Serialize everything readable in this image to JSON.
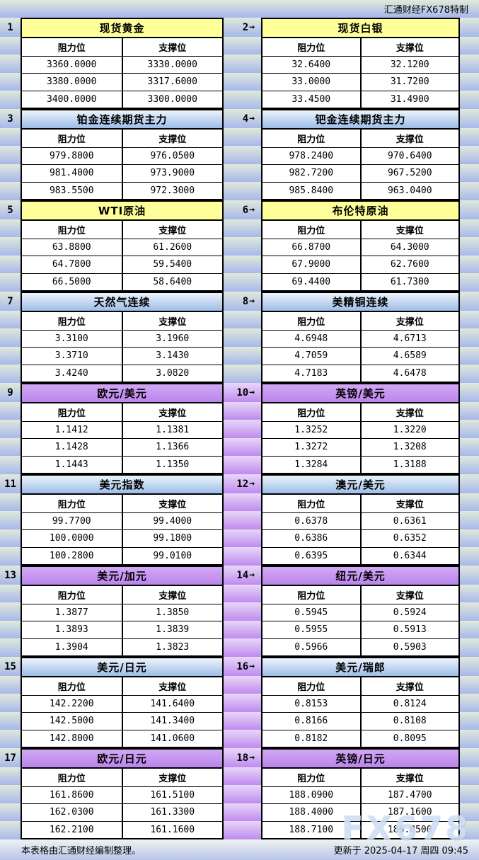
{
  "header": {
    "note": "汇通财经FX678特制"
  },
  "labels": {
    "resistance": "阻力位",
    "support": "支撑位"
  },
  "icons": {
    "right_arrow": "→"
  },
  "colors": {
    "yellow_header": "#ffff99",
    "blue_header_top": "#ecf4fc",
    "blue_header_bottom": "#9dbde7",
    "purple_header_top": "#d2a8f4",
    "purple_header_bottom": "#bb85ec",
    "margin_gradient_top": "#dfead9",
    "margin_gradient_bottom": "#a8b7ec",
    "purple_gutter_top": "#e8d7f8",
    "purple_gutter_bottom": "#bf8bef",
    "border": "#000000"
  },
  "groups": [
    {
      "left_no": "1",
      "right_no": "2",
      "theme": "yellow",
      "gutter": "green",
      "left": {
        "title": "现货黄金",
        "rows": [
          [
            "3360.0000",
            "3330.0000"
          ],
          [
            "3380.0000",
            "3317.6000"
          ],
          [
            "3400.0000",
            "3300.0000"
          ]
        ]
      },
      "right": {
        "title": "现货白银",
        "rows": [
          [
            "32.6400",
            "32.1200"
          ],
          [
            "33.0000",
            "31.7200"
          ],
          [
            "33.4500",
            "31.4900"
          ]
        ]
      }
    },
    {
      "left_no": "3",
      "right_no": "4",
      "theme": "blue",
      "gutter": "green",
      "left": {
        "title": "铂金连续期货主力",
        "rows": [
          [
            "979.8000",
            "976.0500"
          ],
          [
            "981.4000",
            "973.9000"
          ],
          [
            "983.5500",
            "972.3000"
          ]
        ]
      },
      "right": {
        "title": "钯金连续期货主力",
        "rows": [
          [
            "978.2400",
            "970.6400"
          ],
          [
            "982.7200",
            "967.5200"
          ],
          [
            "985.8400",
            "963.0400"
          ]
        ]
      }
    },
    {
      "left_no": "5",
      "right_no": "6",
      "theme": "yellow",
      "gutter": "green",
      "left": {
        "title": "WTI原油",
        "rows": [
          [
            "63.8800",
            "61.2600"
          ],
          [
            "64.7800",
            "59.5400"
          ],
          [
            "66.5000",
            "58.6400"
          ]
        ]
      },
      "right": {
        "title": "布伦特原油",
        "rows": [
          [
            "66.8700",
            "64.3000"
          ],
          [
            "67.9000",
            "62.7600"
          ],
          [
            "69.4400",
            "61.7300"
          ]
        ]
      }
    },
    {
      "left_no": "7",
      "right_no": "8",
      "theme": "blue",
      "gutter": "green",
      "left": {
        "title": "天然气连续",
        "rows": [
          [
            "3.3100",
            "3.1960"
          ],
          [
            "3.3710",
            "3.1430"
          ],
          [
            "3.4240",
            "3.0820"
          ]
        ]
      },
      "right": {
        "title": "美精铜连续",
        "rows": [
          [
            "4.6948",
            "4.6713"
          ],
          [
            "4.7059",
            "4.6589"
          ],
          [
            "4.7183",
            "4.6478"
          ]
        ]
      }
    },
    {
      "left_no": "9",
      "right_no": "10",
      "theme": "purple",
      "gutter": "purple",
      "left": {
        "title": "欧元/美元",
        "rows": [
          [
            "1.1412",
            "1.1381"
          ],
          [
            "1.1428",
            "1.1366"
          ],
          [
            "1.1443",
            "1.1350"
          ]
        ]
      },
      "right": {
        "title": "英镑/美元",
        "rows": [
          [
            "1.3252",
            "1.3220"
          ],
          [
            "1.3272",
            "1.3208"
          ],
          [
            "1.3284",
            "1.3188"
          ]
        ]
      }
    },
    {
      "left_no": "11",
      "right_no": "12",
      "theme": "blue",
      "gutter": "purple",
      "left": {
        "title": "美元指数",
        "rows": [
          [
            "99.7700",
            "99.4000"
          ],
          [
            "100.0000",
            "99.1800"
          ],
          [
            "100.2800",
            "99.0100"
          ]
        ]
      },
      "right": {
        "title": "澳元/美元",
        "rows": [
          [
            "0.6378",
            "0.6361"
          ],
          [
            "0.6386",
            "0.6352"
          ],
          [
            "0.6395",
            "0.6344"
          ]
        ]
      }
    },
    {
      "left_no": "13",
      "right_no": "14",
      "theme": "purple",
      "gutter": "purple",
      "left": {
        "title": "美元/加元",
        "rows": [
          [
            "1.3877",
            "1.3850"
          ],
          [
            "1.3893",
            "1.3839"
          ],
          [
            "1.3904",
            "1.3823"
          ]
        ]
      },
      "right": {
        "title": "纽元/美元",
        "rows": [
          [
            "0.5945",
            "0.5924"
          ],
          [
            "0.5955",
            "0.5913"
          ],
          [
            "0.5966",
            "0.5903"
          ]
        ]
      }
    },
    {
      "left_no": "15",
      "right_no": "16",
      "theme": "blue",
      "gutter": "purple",
      "left": {
        "title": "美元/日元",
        "rows": [
          [
            "142.2200",
            "141.6400"
          ],
          [
            "142.5000",
            "141.3400"
          ],
          [
            "142.8000",
            "141.0600"
          ]
        ]
      },
      "right": {
        "title": "美元/瑞郎",
        "rows": [
          [
            "0.8153",
            "0.8124"
          ],
          [
            "0.8166",
            "0.8108"
          ],
          [
            "0.8182",
            "0.8095"
          ]
        ]
      }
    },
    {
      "left_no": "17",
      "right_no": "18",
      "theme": "purple",
      "gutter": "purple",
      "left": {
        "title": "欧元/日元",
        "rows": [
          [
            "161.8600",
            "161.5100"
          ],
          [
            "162.0300",
            "161.3300"
          ],
          [
            "162.2100",
            "161.1600"
          ]
        ]
      },
      "right": {
        "title": "英镑/日元",
        "rows": [
          [
            "188.0900",
            "187.4700"
          ],
          [
            "188.4000",
            "187.1600"
          ],
          [
            "188.7100",
            "186.8500"
          ]
        ]
      }
    }
  ],
  "footer": {
    "left": "本表格由汇通财经编制整理。",
    "right": "更新于 2025-04-17 周四 09:45",
    "watermark": "FX678"
  }
}
